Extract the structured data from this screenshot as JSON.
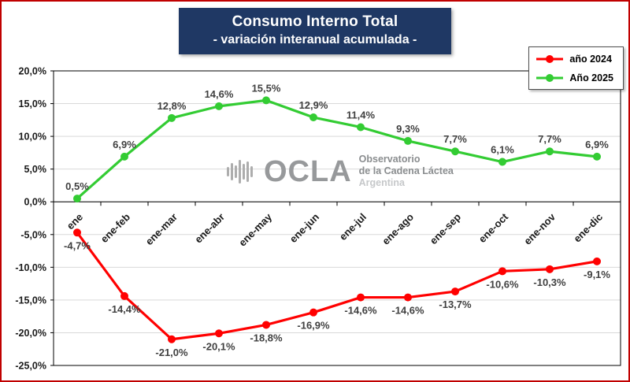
{
  "colors": {
    "frame_border": "#C00000",
    "title_bg": "#1F3864",
    "title_text": "#FFFFFF",
    "grid": "#D9D9D9",
    "axis": "#000000",
    "data_label": "#404040",
    "tick_label": "#1A1A1A"
  },
  "watermark": {
    "brand": "OCLA",
    "org_line1": "Observatorio",
    "org_line2": "de la Cadena Láctea",
    "org_line3": "Argentina"
  },
  "chart_data": {
    "type": "line",
    "title": "Consumo Interno Total",
    "subtitle": "- variación interanual acumulada -",
    "categories": [
      "ene",
      "ene-feb",
      "ene-mar",
      "ene-abr",
      "ene-may",
      "ene-jun",
      "ene-jul",
      "ene-ago",
      "ene-sep",
      "ene-oct",
      "ene-nov",
      "ene-dic"
    ],
    "series": [
      {
        "name": "año 2024",
        "color": "#FF0000",
        "values": [
          -4.7,
          -14.4,
          -21.0,
          -20.1,
          -18.8,
          -16.9,
          -14.6,
          -14.6,
          -13.7,
          -10.6,
          -10.3,
          -9.1
        ],
        "labels": [
          "-4,7%",
          "-14,4%",
          "-21,0%",
          "-20,1%",
          "-18,8%",
          "-16,9%",
          "-14,6%",
          "-14,6%",
          "-13,7%",
          "-10,6%",
          "-10,3%",
          "-9,1%"
        ],
        "label_position": "below"
      },
      {
        "name": "Año 2025",
        "color": "#33CC33",
        "values": [
          0.5,
          6.9,
          12.8,
          14.6,
          15.5,
          12.9,
          11.4,
          9.3,
          7.7,
          6.1,
          7.7,
          6.9
        ],
        "labels": [
          "0,5%",
          "6,9%",
          "12,8%",
          "14,6%",
          "15,5%",
          "12,9%",
          "11,4%",
          "9,3%",
          "7,7%",
          "6,1%",
          "7,7%",
          "6,9%"
        ],
        "label_position": "above"
      }
    ],
    "ylim": [
      -25,
      20
    ],
    "ytick_step": 5,
    "ytick_labels": [
      "20,0%",
      "15,0%",
      "10,0%",
      "5,0%",
      "0,0%",
      "-5,0%",
      "-10,0%",
      "-15,0%",
      "-20,0%",
      "-25,0%"
    ],
    "grid": true,
    "legend_position": "top-right",
    "xlabel": "",
    "ylabel": ""
  }
}
